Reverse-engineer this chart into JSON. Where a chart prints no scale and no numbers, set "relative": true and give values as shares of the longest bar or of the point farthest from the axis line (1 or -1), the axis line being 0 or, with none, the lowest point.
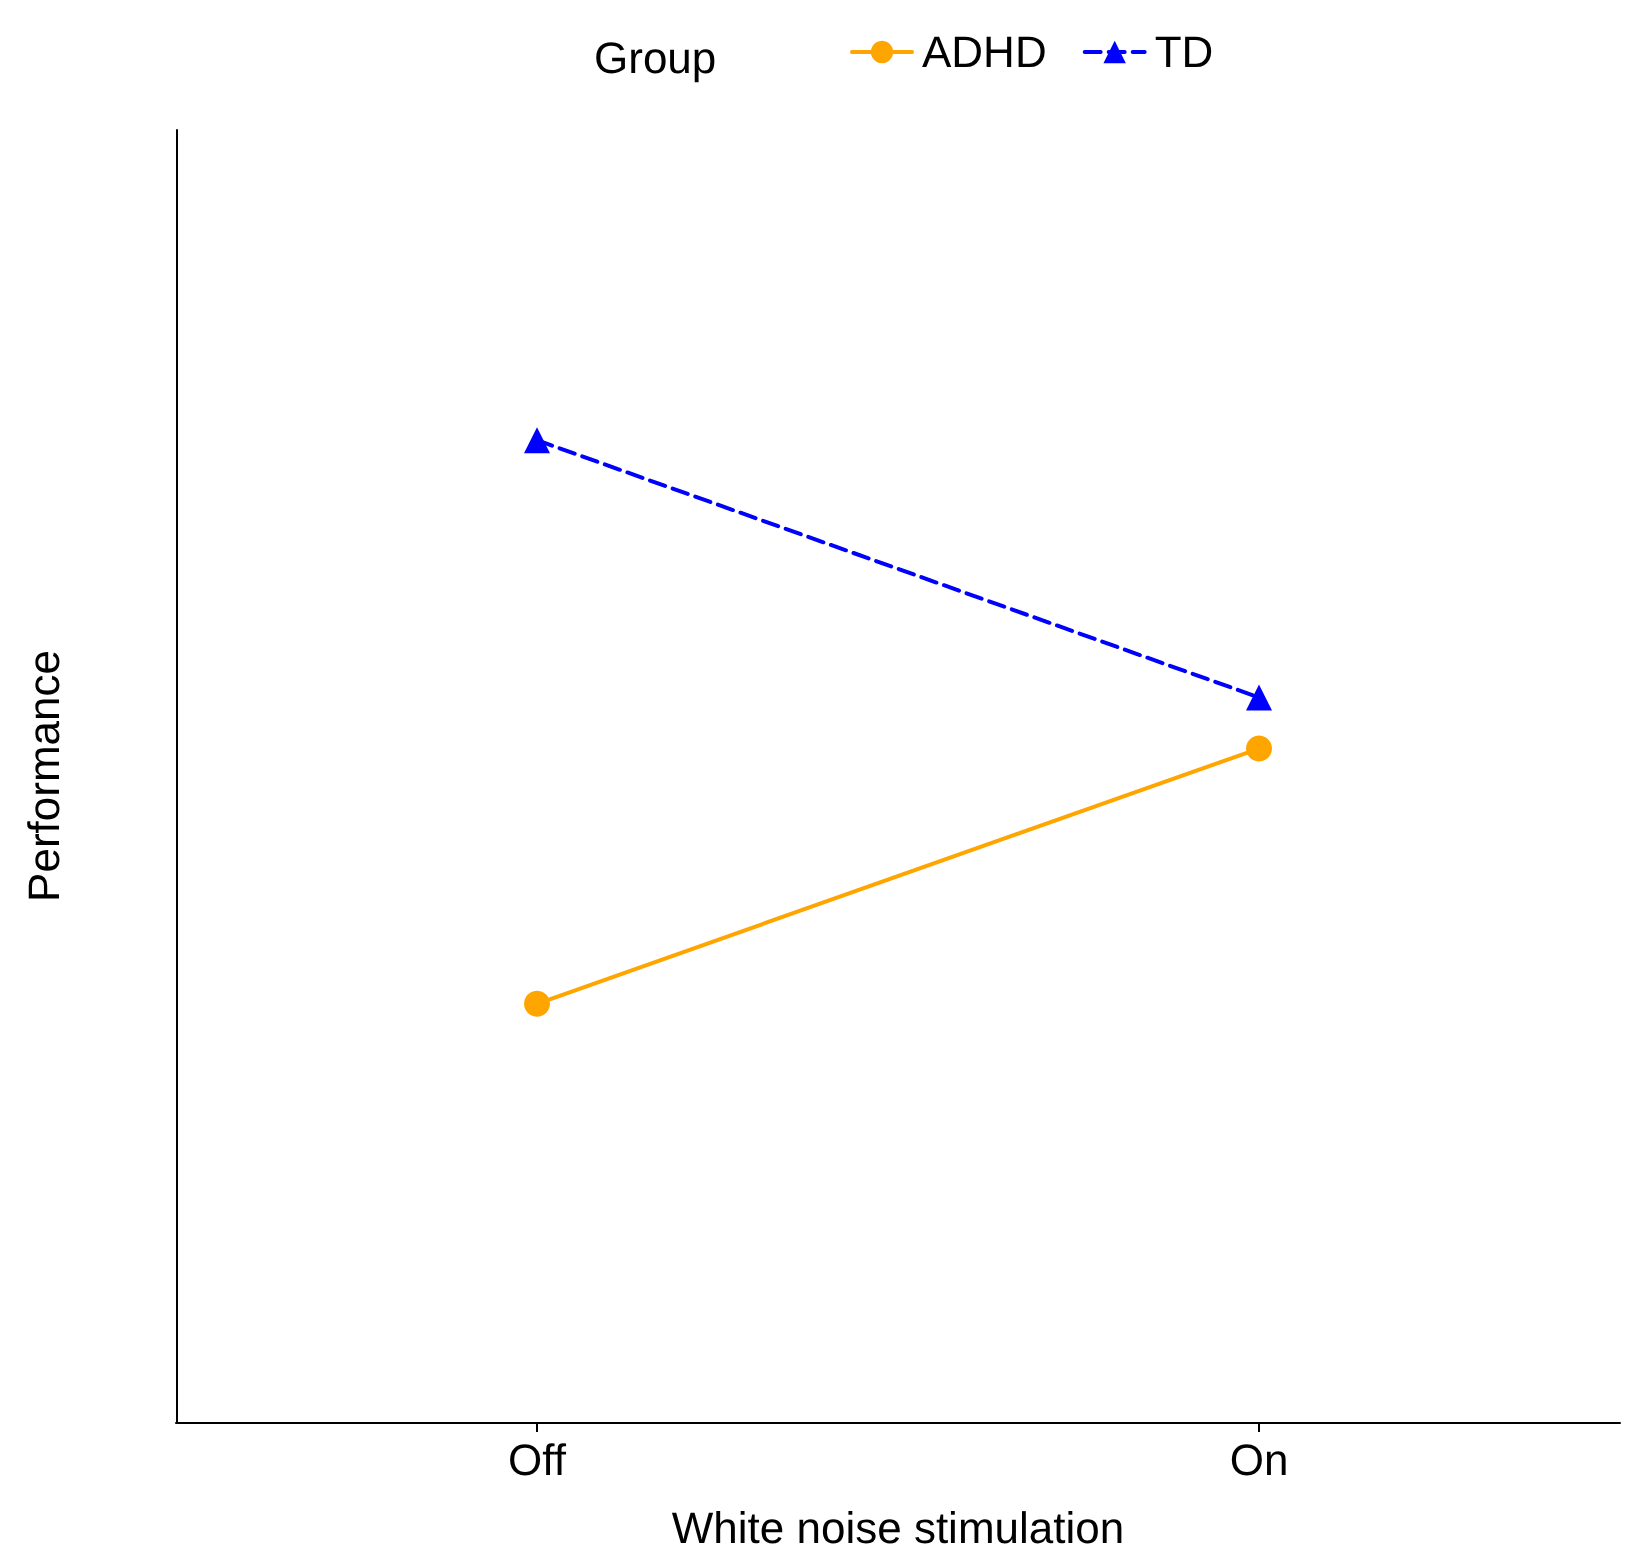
{
  "chart_data": {
    "type": "line",
    "relative": true,
    "xlabel": "White noise stimulation",
    "ylabel": "Performance",
    "legend_title": "Group",
    "legend": "top",
    "grid": false,
    "categories": [
      "Off",
      "On"
    ],
    "series": [
      {
        "name": "ADHD",
        "color": "#ffa500",
        "values": [
          0.426,
          0.686
        ],
        "marker": "circle",
        "line_style": "solid"
      },
      {
        "name": "TD",
        "color": "#0000ff",
        "values": [
          1,
          0.738
        ],
        "marker": "triangle",
        "line_style": "dashed"
      }
    ]
  }
}
